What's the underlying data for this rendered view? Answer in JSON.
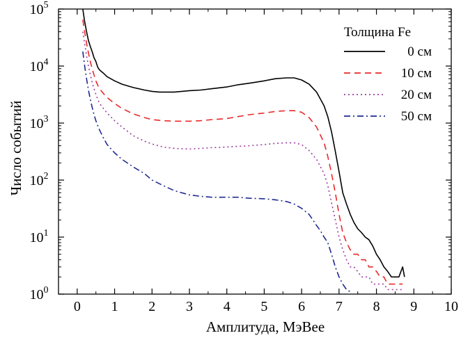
{
  "chart_data": {
    "type": "line",
    "title": "",
    "xlabel": "Амплитуда, МэВее",
    "ylabel": "Число событий",
    "xlim": [
      -0.5,
      10
    ],
    "ylim": [
      1,
      100000
    ],
    "yscale": "log",
    "x_ticks": [
      0,
      1,
      2,
      3,
      4,
      5,
      6,
      7,
      8,
      9,
      10
    ],
    "x_tick_labels": [
      "0",
      "1",
      "2",
      "3",
      "4",
      "5",
      "6",
      "7",
      "8",
      "9",
      "10"
    ],
    "y_ticks": [
      1,
      10,
      100,
      1000,
      10000,
      100000
    ],
    "y_tick_labels": [
      {
        "base": "10",
        "exp": "0"
      },
      {
        "base": "10",
        "exp": "1"
      },
      {
        "base": "10",
        "exp": "2"
      },
      {
        "base": "10",
        "exp": "3"
      },
      {
        "base": "10",
        "exp": "4"
      },
      {
        "base": "10",
        "exp": "5"
      }
    ],
    "grid": false,
    "legend": {
      "title": "Толщина Fe",
      "placement": "top-right"
    },
    "series": [
      {
        "name": "0 см",
        "color": "#000000",
        "dash": "solid",
        "x": [
          0.15,
          0.2,
          0.25,
          0.3,
          0.35,
          0.4,
          0.45,
          0.5,
          0.55,
          0.6,
          0.7,
          0.8,
          1.0,
          1.2,
          1.5,
          1.8,
          2.0,
          2.2,
          2.4,
          2.6,
          2.8,
          3.0,
          3.3,
          3.6,
          4.0,
          4.3,
          4.6,
          5.0,
          5.3,
          5.6,
          5.8,
          6.0,
          6.2,
          6.4,
          6.6,
          6.7,
          6.8,
          6.9,
          7.0,
          7.1,
          7.2,
          7.3,
          7.4,
          7.5,
          7.6,
          7.7,
          7.8,
          7.9,
          8.0,
          8.1,
          8.2,
          8.3,
          8.4,
          8.5,
          8.6,
          8.7,
          8.75
        ],
        "y": [
          100000,
          60000,
          40000,
          28000,
          22000,
          18000,
          14000,
          12000,
          9500,
          8500,
          7500,
          6500,
          5500,
          4800,
          4200,
          3800,
          3600,
          3500,
          3500,
          3500,
          3600,
          3700,
          3800,
          4000,
          4300,
          4700,
          5000,
          5500,
          6000,
          6200,
          6200,
          5700,
          4800,
          3500,
          2000,
          1300,
          700,
          320,
          140,
          60,
          38,
          25,
          18,
          14,
          12,
          10,
          9,
          7,
          5,
          4,
          3,
          2.5,
          2,
          2,
          2,
          3,
          2
        ]
      },
      {
        "name": "10 см",
        "color": "#e8292a",
        "dash": "dashed",
        "x": [
          0.15,
          0.2,
          0.25,
          0.3,
          0.35,
          0.4,
          0.45,
          0.5,
          0.55,
          0.6,
          0.7,
          0.8,
          1.0,
          1.2,
          1.5,
          1.8,
          2.0,
          2.3,
          2.6,
          3.0,
          3.3,
          3.6,
          4.0,
          4.3,
          4.6,
          5.0,
          5.3,
          5.6,
          5.8,
          6.0,
          6.2,
          6.4,
          6.6,
          6.7,
          6.8,
          6.9,
          7.0,
          7.1,
          7.2,
          7.3,
          7.4,
          7.5,
          7.6,
          7.7,
          7.8,
          7.9,
          8.0,
          8.1,
          8.2,
          8.3,
          8.4,
          8.5,
          8.6,
          8.7
        ],
        "y": [
          65000,
          40000,
          25000,
          17000,
          12000,
          9000,
          7000,
          5500,
          4600,
          4000,
          3300,
          2800,
          2200,
          1800,
          1450,
          1250,
          1150,
          1100,
          1080,
          1080,
          1100,
          1150,
          1200,
          1300,
          1400,
          1500,
          1600,
          1650,
          1650,
          1550,
          1250,
          850,
          450,
          260,
          130,
          60,
          25,
          12,
          8,
          6,
          5,
          5,
          4,
          4,
          3,
          3,
          2.5,
          2,
          2,
          1.5,
          1.5,
          1.5,
          1.5,
          1.5
        ]
      },
      {
        "name": "20 см",
        "color": "#9a3a9e",
        "dash": "dotted",
        "x": [
          0.15,
          0.2,
          0.25,
          0.3,
          0.35,
          0.4,
          0.45,
          0.5,
          0.55,
          0.6,
          0.7,
          0.8,
          1.0,
          1.2,
          1.5,
          1.8,
          2.0,
          2.3,
          2.6,
          3.0,
          3.3,
          3.6,
          4.0,
          4.3,
          4.6,
          5.0,
          5.3,
          5.6,
          5.8,
          6.0,
          6.2,
          6.4,
          6.6,
          6.7,
          6.8,
          6.9,
          7.0,
          7.1,
          7.2,
          7.3,
          7.4,
          7.5,
          7.6,
          7.7,
          7.8,
          7.9,
          8.0,
          8.1,
          8.2,
          8.3,
          8.4,
          8.5,
          8.6,
          8.7
        ],
        "y": [
          40000,
          25000,
          15000,
          10000,
          7000,
          5200,
          4000,
          3200,
          2600,
          2200,
          1800,
          1500,
          1100,
          850,
          600,
          480,
          430,
          380,
          360,
          350,
          360,
          370,
          380,
          390,
          400,
          420,
          440,
          450,
          450,
          420,
          330,
          230,
          130,
          80,
          40,
          20,
          10,
          6,
          4,
          3,
          3,
          2.5,
          2,
          2,
          2,
          1.5,
          1.5,
          1.5,
          1.5,
          1.2,
          1.2,
          1.2,
          1.2,
          1.2
        ]
      },
      {
        "name": "50 см",
        "color": "#1f2a8f",
        "dash": "dashdot",
        "x": [
          0.15,
          0.2,
          0.25,
          0.3,
          0.35,
          0.4,
          0.45,
          0.5,
          0.55,
          0.6,
          0.7,
          0.8,
          1.0,
          1.2,
          1.5,
          1.8,
          2.0,
          2.3,
          2.6,
          3.0,
          3.3,
          3.6,
          4.0,
          4.3,
          4.6,
          5.0,
          5.3,
          5.6,
          5.8,
          6.0,
          6.2,
          6.3,
          6.4,
          6.5,
          6.6,
          6.7,
          6.8,
          6.9,
          7.0,
          7.1,
          7.2,
          7.3
        ],
        "y": [
          18000,
          10000,
          6000,
          3800,
          2600,
          1900,
          1400,
          1100,
          900,
          750,
          550,
          420,
          300,
          230,
          170,
          130,
          100,
          80,
          65,
          55,
          52,
          50,
          50,
          50,
          48,
          47,
          45,
          42,
          38,
          32,
          25,
          20,
          16,
          13,
          10,
          8,
          5,
          3,
          2,
          1.5,
          1.2,
          1.1
        ]
      }
    ]
  }
}
